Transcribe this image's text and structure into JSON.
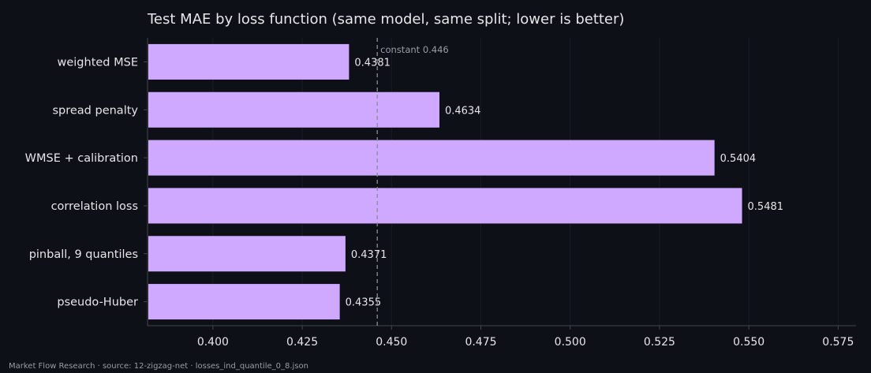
{
  "chart_data": {
    "type": "bar",
    "orientation": "horizontal",
    "title": "Test MAE by loss function (same model, same split; lower is better)",
    "xlabel": "",
    "ylabel": "",
    "categories": [
      "weighted MSE",
      "spread penalty",
      "WMSE + calibration",
      "correlation loss",
      "pinball, 9 quantiles",
      "pseudo-Huber"
    ],
    "values": [
      0.4381,
      0.4634,
      0.5404,
      0.5481,
      0.4371,
      0.4355
    ],
    "value_labels": [
      "0.4381",
      "0.4634",
      "0.5404",
      "0.5481",
      "0.4371",
      "0.4355"
    ],
    "xlim": [
      0.3817,
      0.58
    ],
    "xticks": [
      0.4,
      0.425,
      0.45,
      0.475,
      0.5,
      0.525,
      0.55,
      0.575
    ],
    "xtick_labels": [
      "0.400",
      "0.425",
      "0.450",
      "0.475",
      "0.500",
      "0.525",
      "0.550",
      "0.575"
    ],
    "reference_line": {
      "value": 0.446,
      "label": "constant 0.446"
    },
    "grid": "x",
    "legend": "none"
  },
  "footer": "Market Flow Research · source: 12-zigzag-net · losses_ind_quantile_0_8.json",
  "colors": {
    "background": "#0d1017",
    "bar": "#cfa8ff",
    "axis": "#44464e",
    "grid": "#1a1d25",
    "text": "#e6e6ea",
    "muted": "#9a9ca3",
    "reference": "#8a8c94"
  }
}
